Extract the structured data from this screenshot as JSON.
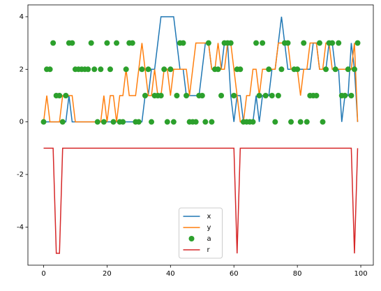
{
  "chart_data": {
    "type": "line",
    "x": [
      0,
      1,
      2,
      3,
      4,
      5,
      6,
      7,
      8,
      9,
      10,
      11,
      12,
      13,
      14,
      15,
      16,
      17,
      18,
      19,
      20,
      21,
      22,
      23,
      24,
      25,
      26,
      27,
      28,
      29,
      30,
      31,
      32,
      33,
      34,
      35,
      36,
      37,
      38,
      39,
      40,
      41,
      42,
      43,
      44,
      45,
      46,
      47,
      48,
      49,
      50,
      51,
      52,
      53,
      54,
      55,
      56,
      57,
      58,
      59,
      60,
      61,
      62,
      63,
      64,
      65,
      66,
      67,
      68,
      69,
      70,
      71,
      72,
      73,
      74,
      75,
      76,
      77,
      78,
      79,
      80,
      81,
      82,
      83,
      84,
      85,
      86,
      87,
      88,
      89,
      90,
      91,
      92,
      93,
      94,
      95,
      96,
      97,
      98,
      99
    ],
    "series": [
      {
        "name": "x",
        "kind": "line",
        "color": "#1f77b4",
        "values": [
          0,
          0,
          0,
          0,
          0,
          0,
          0,
          0,
          1,
          0,
          0,
          0,
          0,
          0,
          0,
          0,
          0,
          0,
          0,
          0,
          0,
          0,
          0,
          0,
          0,
          0,
          0,
          0,
          0,
          0,
          0,
          0,
          1,
          1,
          2,
          2,
          3,
          4,
          4,
          4,
          4,
          4,
          3,
          2,
          2,
          1,
          1,
          1,
          1,
          1,
          2,
          3,
          3,
          2,
          2,
          2,
          2,
          3,
          3,
          1,
          0,
          1,
          1,
          0,
          0,
          0,
          0,
          1,
          0,
          1,
          1,
          1,
          2,
          2,
          3,
          4,
          3,
          2,
          2,
          2,
          2,
          2,
          2,
          2,
          2,
          3,
          3,
          2,
          2,
          2,
          3,
          3,
          2,
          2,
          0,
          1,
          1,
          3,
          2,
          0
        ]
      },
      {
        "name": "y",
        "kind": "line",
        "color": "#ff7f0e",
        "values": [
          0,
          1,
          0,
          0,
          0,
          0,
          1,
          1,
          1,
          1,
          0,
          0,
          0,
          0,
          0,
          0,
          0,
          0,
          0,
          1,
          0,
          1,
          1,
          0,
          1,
          1,
          2,
          1,
          1,
          1,
          2,
          3,
          2,
          1,
          1,
          2,
          1,
          1,
          2,
          2,
          1,
          2,
          2,
          2,
          2,
          2,
          1,
          2,
          3,
          3,
          3,
          3,
          3,
          2,
          2,
          3,
          2,
          2,
          3,
          3,
          2,
          1,
          0,
          0,
          1,
          1,
          2,
          2,
          1,
          2,
          2,
          2,
          2,
          2,
          3,
          3,
          3,
          3,
          2,
          2,
          2,
          1,
          2,
          2,
          3,
          3,
          3,
          2,
          2,
          3,
          3,
          2,
          2,
          2,
          2,
          2,
          2,
          2,
          3,
          0
        ]
      },
      {
        "name": "a",
        "kind": "scatter",
        "color": "#2ca02c",
        "values": [
          0,
          2,
          2,
          3,
          1,
          1,
          0,
          1,
          3,
          3,
          2,
          2,
          2,
          2,
          2,
          3,
          2,
          0,
          2,
          0,
          3,
          2,
          0,
          3,
          0,
          0,
          2,
          3,
          3,
          0,
          0,
          2,
          1,
          2,
          0,
          1,
          1,
          1,
          2,
          0,
          2,
          0,
          1,
          3,
          3,
          1,
          0,
          0,
          0,
          1,
          1,
          0,
          3,
          0,
          2,
          2,
          1,
          3,
          3,
          3,
          1,
          2,
          2,
          0,
          0,
          0,
          0,
          3,
          1,
          3,
          1,
          2,
          1,
          0,
          1,
          2,
          3,
          3,
          0,
          2,
          2,
          0,
          3,
          0,
          1,
          1,
          1,
          3,
          0,
          2,
          3,
          3,
          2,
          3,
          1,
          1,
          2,
          1,
          2,
          3
        ]
      },
      {
        "name": "r",
        "kind": "line",
        "color": "#d62728",
        "values": [
          -1,
          -1,
          -1,
          -1,
          -5,
          -5,
          -1,
          -1,
          -1,
          -1,
          -1,
          -1,
          -1,
          -1,
          -1,
          -1,
          -1,
          -1,
          -1,
          -1,
          -1,
          -1,
          -1,
          -1,
          -1,
          -1,
          -1,
          -1,
          -1,
          -1,
          -1,
          -1,
          -1,
          -1,
          -1,
          -1,
          -1,
          -1,
          -1,
          -1,
          -1,
          -1,
          -1,
          -1,
          -1,
          -1,
          -1,
          -1,
          -1,
          -1,
          -1,
          -1,
          -1,
          -1,
          -1,
          -1,
          -1,
          -1,
          -1,
          -1,
          -1,
          -5,
          -1,
          -1,
          -1,
          -1,
          -1,
          -1,
          -1,
          -1,
          -1,
          -1,
          -1,
          -1,
          -1,
          -1,
          -1,
          -1,
          -1,
          -1,
          -1,
          -1,
          -1,
          -1,
          -1,
          -1,
          -1,
          -1,
          -1,
          -1,
          -1,
          -1,
          -1,
          -1,
          -1,
          -1,
          -1,
          -1,
          -5,
          -1
        ]
      }
    ],
    "xlim": [
      -4.95,
      103.95
    ],
    "xticks": [
      0,
      20,
      40,
      60,
      80,
      100
    ],
    "ylim": [
      -5.45,
      4.45
    ],
    "yticks": [
      -4,
      -2,
      0,
      2,
      4
    ],
    "legend": "lower center"
  }
}
